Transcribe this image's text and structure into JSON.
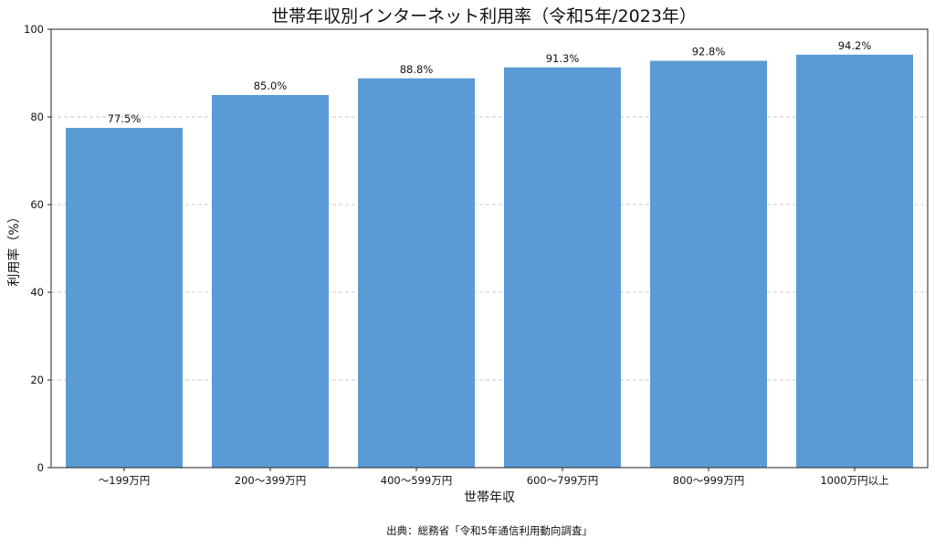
{
  "chart_data": {
    "type": "bar",
    "title": "世帯年収別インターネット利用率（令和5年/2023年）",
    "xlabel": "世帯年収",
    "ylabel": "利用率（%）",
    "categories": [
      "～199万円",
      "200～399万円",
      "400～599万円",
      "600～799万円",
      "800～999万円",
      "1000万円以上"
    ],
    "values": [
      77.5,
      85.0,
      88.8,
      91.3,
      92.8,
      94.2
    ],
    "data_labels": [
      "77.5%",
      "85.0%",
      "88.8%",
      "91.3%",
      "92.8%",
      "94.2%"
    ],
    "ylim": [
      0,
      100
    ],
    "yticks": [
      0,
      20,
      40,
      60,
      80,
      100
    ],
    "grid": "horizontal dashed at 20, 40, 60, 80",
    "bar_color": "#5b9bd5",
    "source": "出典：総務省「令和5年通信利用動向調査」"
  }
}
